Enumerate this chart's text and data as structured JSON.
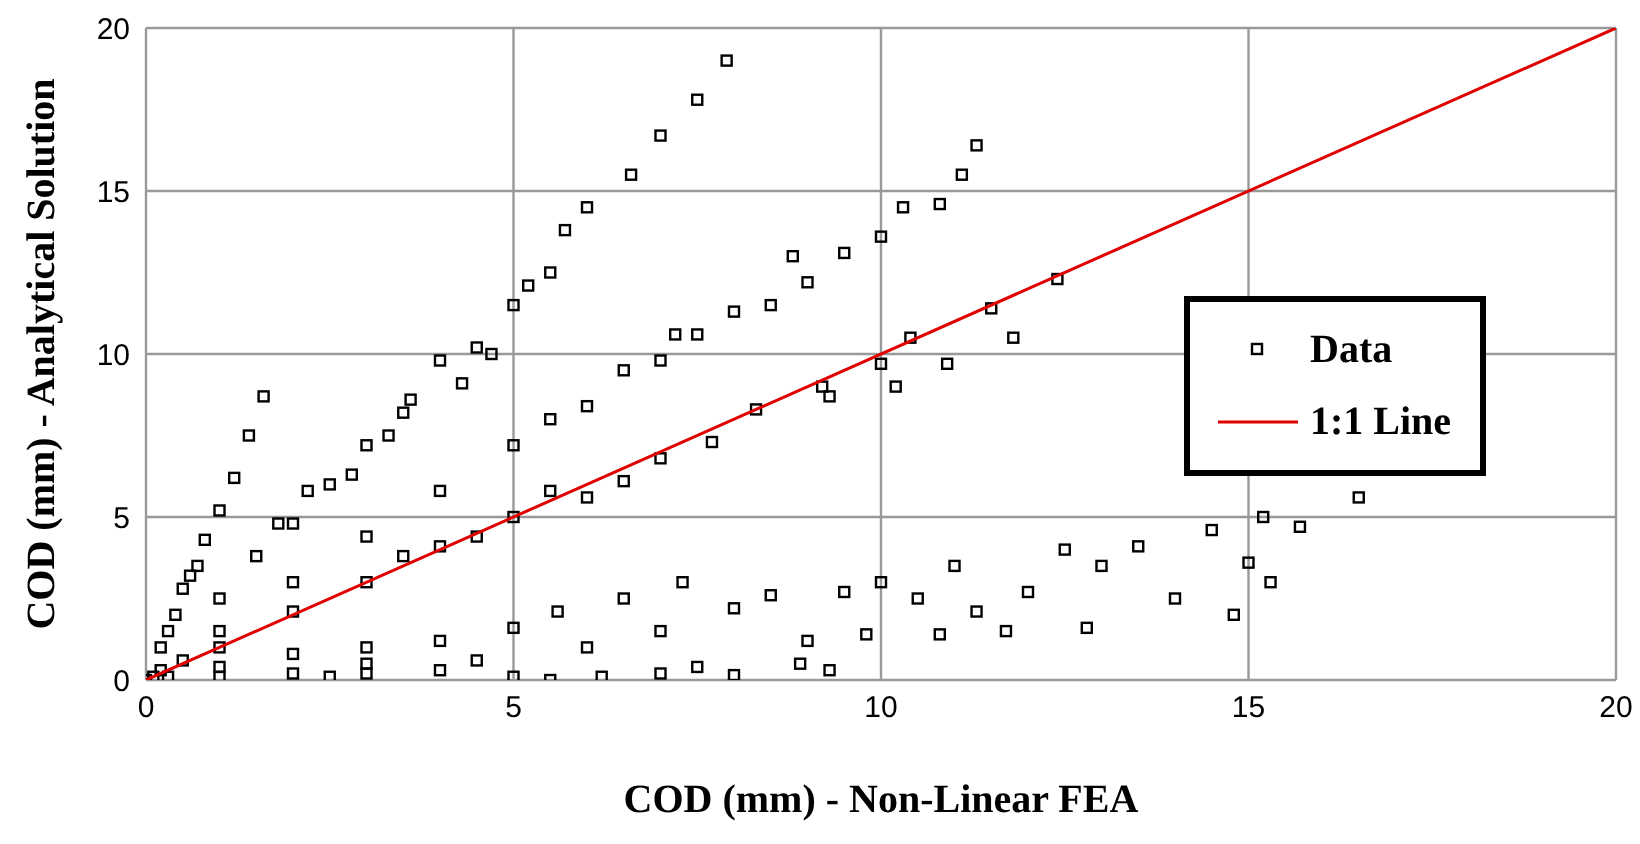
{
  "chart_data": {
    "type": "scatter",
    "xlabel": "COD (mm) - Non-Linear FEA",
    "ylabel": "COD (mm) - Analytical Solution",
    "xlim": [
      0,
      20
    ],
    "ylim": [
      0,
      20
    ],
    "xticks": [
      0,
      5,
      10,
      15,
      20
    ],
    "yticks": [
      0,
      5,
      10,
      15,
      20
    ],
    "grid": true,
    "legend": "right",
    "series": [
      {
        "name": "Data",
        "marker": "square",
        "color": "#000000",
        "x": [
          0,
          0.1,
          0.2,
          0.3,
          0.5,
          0.2,
          0.4,
          0.6,
          0.8,
          1.0,
          1.2,
          1.4,
          1.6,
          0.3,
          0.7,
          0.5,
          1,
          1.5,
          2,
          2.5,
          3,
          3.5,
          3.6,
          4,
          4.3,
          4.7,
          5,
          5.2,
          5.5,
          5.7,
          6,
          6.6,
          7,
          7.5,
          7.9,
          4.5,
          2.8,
          3.3,
          2.2,
          1.8,
          1,
          2,
          3,
          4,
          5,
          5.5,
          6,
          6.5,
          7,
          7.5,
          8,
          8.5,
          9,
          9.5,
          10,
          10.3,
          10.8,
          11.1,
          11.3,
          8.8,
          7.2,
          1,
          2,
          3,
          4,
          5,
          6,
          7,
          7.7,
          8.3,
          9.2,
          10,
          10.2,
          10.4,
          10.9,
          11.5,
          11.8,
          12.4,
          6.5,
          5.5,
          4.5,
          3.5,
          9.3,
          1,
          2,
          3,
          4,
          5,
          5.6,
          6.5,
          7.3,
          8,
          8.5,
          9,
          9.5,
          10,
          10.5,
          11,
          11.3,
          12,
          12.5,
          13,
          13.5,
          14,
          14.5,
          15,
          15.2,
          15.3,
          15.7,
          16.5,
          14.8,
          12.8,
          11.7,
          10.8,
          9.8,
          6,
          7,
          1,
          2,
          3,
          4,
          5,
          5.5,
          6.2,
          7,
          7.5,
          8,
          8.9,
          9.3,
          3,
          4.5,
          2.5
        ],
        "values": [
          0,
          0.1,
          0.3,
          0.1,
          0.6,
          1,
          2,
          3.2,
          4.3,
          5.2,
          6.2,
          7.5,
          8.7,
          1.5,
          3.5,
          2.8,
          2.5,
          3.8,
          4.8,
          6,
          7.2,
          8.2,
          8.6,
          9.8,
          9.1,
          10,
          11.5,
          12.1,
          12.5,
          13.8,
          14.5,
          15.5,
          16.7,
          17.8,
          19,
          10.2,
          6.3,
          7.5,
          5.8,
          4.8,
          1.5,
          3,
          4.4,
          5.8,
          7.2,
          8,
          8.4,
          9.5,
          9.8,
          10.6,
          11.3,
          11.5,
          12.2,
          13.1,
          13.6,
          14.5,
          14.6,
          15.5,
          16.4,
          13,
          10.6,
          1,
          2.1,
          3,
          4.1,
          5,
          5.6,
          6.8,
          7.3,
          8.3,
          9,
          9.7,
          9,
          10.5,
          9.7,
          11.4,
          10.5,
          12.3,
          6.1,
          5.8,
          4.4,
          3.8,
          8.7,
          0.4,
          0.8,
          1,
          1.2,
          1.6,
          2.1,
          2.5,
          3,
          2.2,
          2.6,
          1.2,
          2.7,
          3,
          2.5,
          3.5,
          2.1,
          2.7,
          4,
          3.5,
          4.1,
          2.5,
          4.6,
          3.6,
          5,
          3,
          4.7,
          5.6,
          2,
          1.6,
          1.5,
          1.4,
          1.4,
          1,
          1.5,
          0.1,
          0.2,
          0.2,
          0.3,
          0.1,
          0,
          0.1,
          0.2,
          0.4,
          0.15,
          0.5,
          0.3,
          0.5,
          0.6,
          0.1
        ]
      },
      {
        "name": "1:1 Line",
        "type": "line",
        "marker": "none",
        "color": "#e00000",
        "x": [
          0,
          20
        ],
        "values": [
          0,
          20
        ]
      }
    ]
  }
}
